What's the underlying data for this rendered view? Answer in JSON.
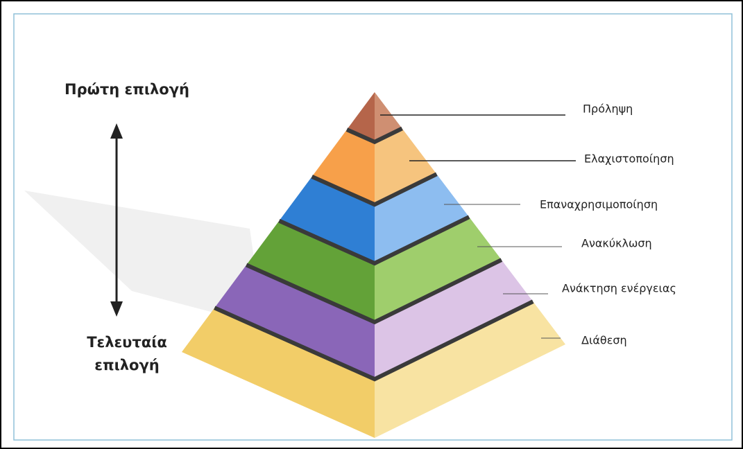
{
  "scale": {
    "top": "Πρώτη  επιλογή",
    "bottom": [
      "Τελευταία",
      "επιλογή"
    ]
  },
  "layers": [
    {
      "label": "Πρόληψη"
    },
    {
      "label": "Ελαχιστοποίηση"
    },
    {
      "label": "Επαναχρησιμοποίηση"
    },
    {
      "label": "Ανακύκλωση"
    },
    {
      "label": "Ανάκτηση ενέργειας"
    },
    {
      "label": "Διάθεση"
    }
  ]
}
